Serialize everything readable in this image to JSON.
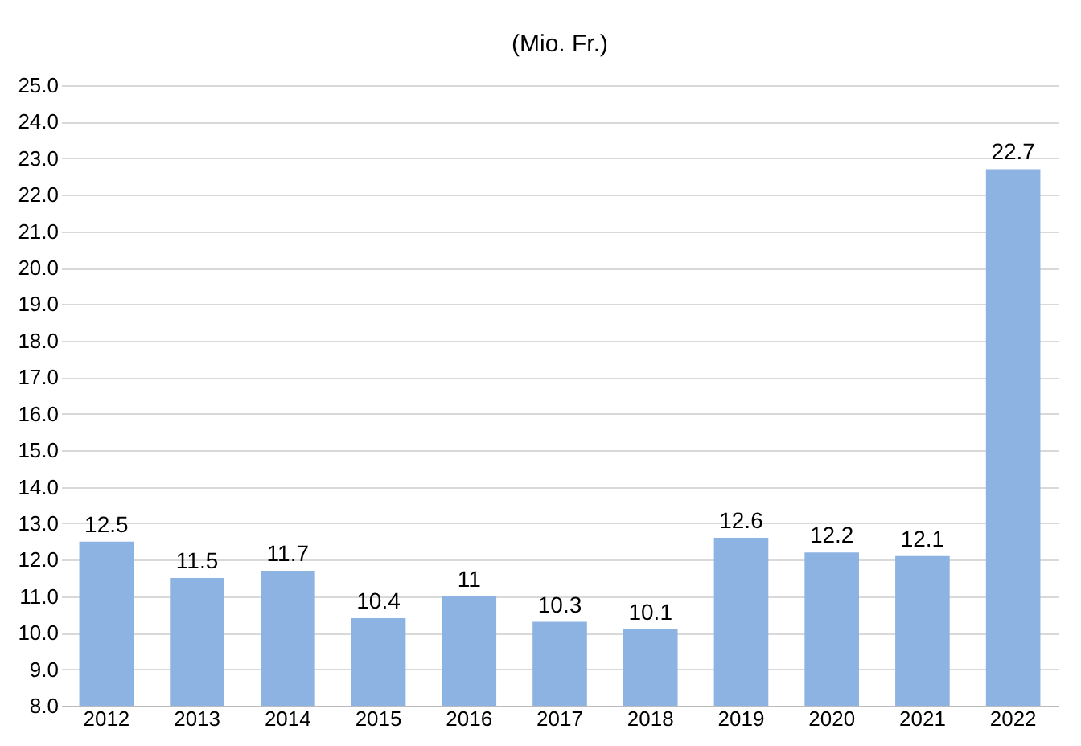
{
  "chart_data": {
    "type": "bar",
    "title": "(Mio. Fr.)",
    "categories": [
      "2012",
      "2013",
      "2014",
      "2015",
      "2016",
      "2017",
      "2018",
      "2019",
      "2020",
      "2021",
      "2022"
    ],
    "values": [
      12.5,
      11.5,
      11.7,
      10.4,
      11,
      10.3,
      10.1,
      12.6,
      12.2,
      12.1,
      22.7
    ],
    "color": "#8db3e2",
    "ylim": [
      8,
      25
    ],
    "yticks": [
      {
        "value": 8,
        "label": "8.0"
      },
      {
        "value": 9,
        "label": "9.0"
      },
      {
        "value": 10,
        "label": "10.0"
      },
      {
        "value": 11,
        "label": "11.0"
      },
      {
        "value": 12,
        "label": "12.0"
      },
      {
        "value": 13,
        "label": "13.0"
      },
      {
        "value": 14,
        "label": "14.0"
      },
      {
        "value": 15,
        "label": "15.0"
      },
      {
        "value": 16,
        "label": "16.0"
      },
      {
        "value": 17,
        "label": "17.0"
      },
      {
        "value": 18,
        "label": "18.0"
      },
      {
        "value": 19,
        "label": "19.0"
      },
      {
        "value": 20,
        "label": "20.0"
      },
      {
        "value": 21,
        "label": "21.0"
      },
      {
        "value": 22,
        "label": "22.0"
      },
      {
        "value": 23,
        "label": "23.0"
      },
      {
        "value": 24,
        "label": "24.0"
      },
      {
        "value": 25,
        "label": "25.0"
      }
    ],
    "grid": "y",
    "data_labels": true
  }
}
